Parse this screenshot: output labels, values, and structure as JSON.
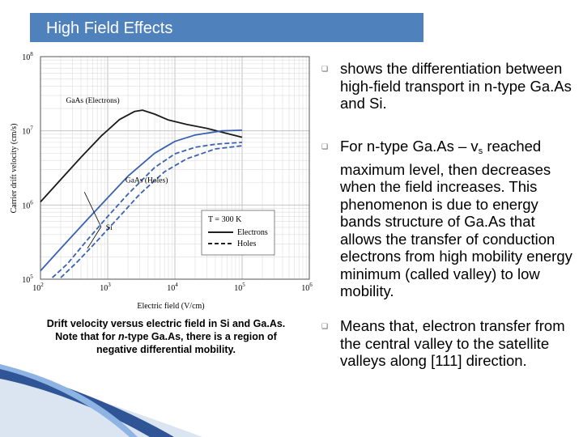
{
  "slide": {
    "title": "High Field Effects",
    "caption_line1": "Drift velocity versus electric field in Si and Ga.As.",
    "caption_line2_pre": "Note that for ",
    "caption_line2_italic": "n",
    "caption_line2_post": "-type Ga.As, there is a region of",
    "caption_line3": "negative differential mobility.",
    "bullets": [
      {
        "icon": "bullet-icon",
        "text": "shows the differentiation between high-field transport in n-type Ga.As and Si."
      },
      {
        "icon": "bullet-icon",
        "text_pre": "For n-type Ga.As – v",
        "text_sub": "s",
        "text_post": " reached maximum level, then decreases when the field increases. This phenomenon is due to energy bands structure of Ga.As that allows the transfer of conduction electrons from high mobility energy minimum (called valley) to low mobility."
      },
      {
        "icon": "bullet-icon",
        "text": "Means that, electron transfer from the central valley to the satellite valleys along [111] direction."
      }
    ],
    "accent_color": "#4f81bd"
  },
  "chart_data": {
    "type": "line",
    "x_scale": "log",
    "y_scale": "log",
    "xlabel": "Electric field (V/cm)",
    "ylabel": "Carrier drift velocity (cm/s)",
    "xlim": [
      100,
      1000000
    ],
    "ylim": [
      100000,
      100000000
    ],
    "x_ticks": [
      {
        "value": 100,
        "base": "10",
        "exp": "2"
      },
      {
        "value": 1000,
        "base": "10",
        "exp": "3"
      },
      {
        "value": 10000,
        "base": "10",
        "exp": "4"
      },
      {
        "value": 100000,
        "base": "10",
        "exp": "5"
      },
      {
        "value": 1000000,
        "base": "10",
        "exp": "6"
      }
    ],
    "y_ticks": [
      {
        "value": 100000,
        "base": "10",
        "exp": "5"
      },
      {
        "value": 1000000,
        "base": "10",
        "exp": "6"
      },
      {
        "value": 10000000,
        "base": "10",
        "exp": "7"
      },
      {
        "value": 100000000,
        "base": "10",
        "exp": "8"
      }
    ],
    "grid": true,
    "series": [
      {
        "name": "GaAs (Electrons)",
        "color": "#1a1a1a",
        "style": "solid",
        "x": [
          100,
          200,
          400,
          800,
          1500,
          2500,
          3300,
          5000,
          8000,
          15000,
          30000,
          60000,
          100000
        ],
        "y": [
          1100000.0,
          2200000.0,
          4400000.0,
          8500000.0,
          14200000.0,
          18200000.0,
          19000000.0,
          16800000.0,
          14000000.0,
          12200000.0,
          10800000.0,
          9200000.0,
          8200000.0
        ]
      },
      {
        "name": "GaAs (Holes)",
        "color": "#3a62b0",
        "style": "dashed",
        "x": [
          150,
          250,
          500,
          1000,
          2000,
          5000,
          10000,
          20000,
          40000,
          100000
        ],
        "y": [
          105000.0,
          160000.0,
          340000.0,
          700000.0,
          1400000.0,
          3200000.0,
          4900000.0,
          6000000.0,
          6600000.0,
          7000000.0
        ]
      },
      {
        "name": "Si (Holes)",
        "color": "#3a62b0",
        "style": "dashed",
        "x": [
          200,
          350,
          700,
          1500,
          3000,
          7000,
          15000,
          40000,
          100000
        ],
        "y": [
          105000.0,
          170000.0,
          330000.0,
          700000.0,
          1400000.0,
          2800000.0,
          4200000.0,
          5700000.0,
          6300000.0
        ]
      },
      {
        "name": "Si (Electrons)",
        "color": "#3a62b0",
        "style": "solid",
        "x": [
          100,
          200,
          500,
          1000,
          2000,
          5000,
          10000,
          20000,
          50000,
          100000
        ],
        "y": [
          130000.0,
          260000.0,
          640000.0,
          1250000.0,
          2450000.0,
          5000000.0,
          7200000.0,
          8800000.0,
          10000000.0,
          10200000.0
        ]
      }
    ],
    "annotations": [
      {
        "text": "GaAs (Electrons)",
        "x": 600,
        "y": 24000000.0
      },
      {
        "text": "GaAs (Holes)",
        "x": 3800,
        "y": 2000000.0
      },
      {
        "text": "Si",
        "x": 1050,
        "y": 460000.0
      }
    ],
    "legend": {
      "position": "lower-right",
      "title": "T = 300 K",
      "entries": [
        {
          "label": "Electrons",
          "style": "solid"
        },
        {
          "label": "Holes",
          "style": "dashed"
        }
      ]
    }
  }
}
